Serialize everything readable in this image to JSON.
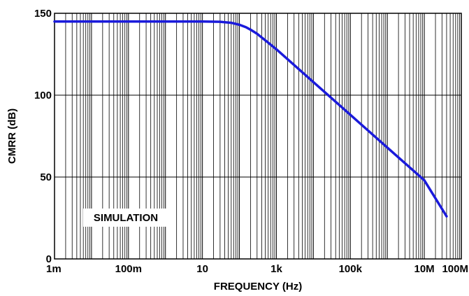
{
  "chart_data": {
    "type": "line",
    "title": "",
    "xlabel": "FREQUENCY (Hz)",
    "ylabel": "CMRR (dB)",
    "xscale": "log",
    "xlim": [
      0.001,
      100000000
    ],
    "ylim": [
      0,
      150
    ],
    "xticks": [
      {
        "value": 0.001,
        "label": "1m"
      },
      {
        "value": 0.1,
        "label": "100m"
      },
      {
        "value": 10,
        "label": "10"
      },
      {
        "value": 1000,
        "label": "1k"
      },
      {
        "value": 100000,
        "label": "100k"
      },
      {
        "value": 10000000,
        "label": "10M"
      },
      {
        "value": 100000000,
        "label": "100M"
      }
    ],
    "yticks": [
      {
        "value": 0,
        "label": "0"
      },
      {
        "value": 50,
        "label": "50"
      },
      {
        "value": 100,
        "label": "100"
      },
      {
        "value": 150,
        "label": "150"
      }
    ],
    "grid": true,
    "annotation": "SIMULATION",
    "colors": {
      "line": "#1a1adb",
      "grid": "#000000"
    },
    "series": [
      {
        "x": [
          0.001,
          0.01,
          0.1,
          1,
          10,
          30,
          60,
          100,
          150,
          200,
          300,
          500,
          1000,
          10000,
          100000,
          1000000,
          10000000,
          40000000
        ],
        "values": [
          145,
          145,
          145,
          145,
          145,
          144.8,
          144.2,
          143,
          141.5,
          140,
          137.5,
          133.5,
          128,
          108,
          88,
          68,
          48,
          26
        ]
      }
    ]
  }
}
